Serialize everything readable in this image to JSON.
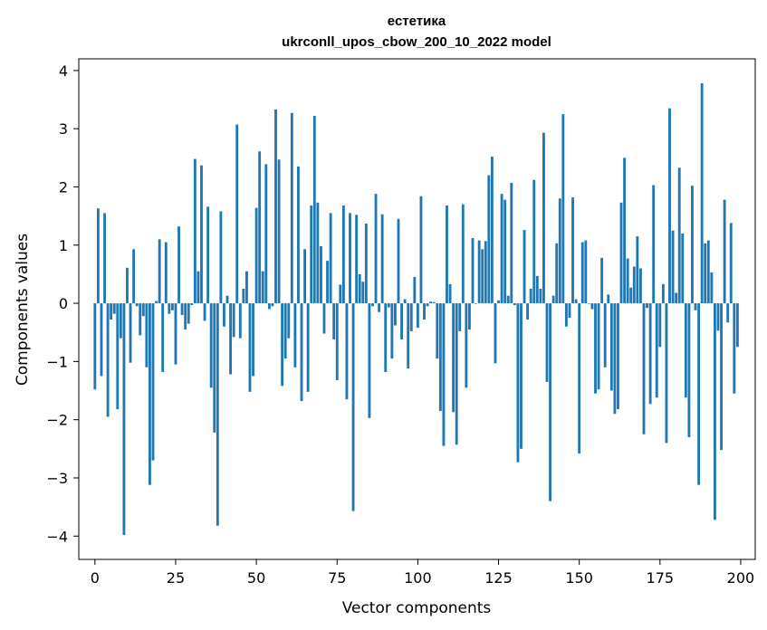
{
  "chart_data": {
    "type": "bar",
    "title_line1": "естетика",
    "title_line2": "ukrconll_upos_cbow_200_10_2022 model",
    "xlabel": "Vector components",
    "ylabel": "Components values",
    "xlim": [
      -5,
      204.5
    ],
    "ylim": [
      -4.4,
      4.2
    ],
    "xticks": [
      0,
      25,
      50,
      75,
      100,
      125,
      150,
      175,
      200
    ],
    "xtick_labels": [
      "0",
      "25",
      "50",
      "75",
      "100",
      "125",
      "150",
      "175",
      "200"
    ],
    "yticks": [
      -4,
      -3,
      -2,
      -1,
      0,
      1,
      2,
      3,
      4
    ],
    "ytick_labels": [
      "−4",
      "−3",
      "−2",
      "−1",
      "0",
      "1",
      "2",
      "3",
      "4"
    ],
    "bar_color": "#1f77b4",
    "values": [
      -1.48,
      1.63,
      -1.25,
      1.55,
      -1.95,
      -0.28,
      -0.18,
      -1.82,
      -0.6,
      -3.98,
      0.61,
      -1.02,
      0.93,
      -0.05,
      -0.55,
      -0.22,
      -1.1,
      -3.12,
      -2.7,
      0.04,
      1.1,
      -1.18,
      1.05,
      -0.18,
      -0.12,
      -1.05,
      1.32,
      -0.2,
      -0.45,
      -0.35,
      -0.03,
      2.48,
      0.55,
      2.37,
      -0.3,
      1.66,
      -1.45,
      -2.22,
      -3.82,
      1.58,
      -0.4,
      0.13,
      -1.22,
      -0.58,
      3.07,
      -0.6,
      0.25,
      0.55,
      -1.52,
      -1.25,
      1.64,
      2.61,
      0.55,
      2.39,
      -0.1,
      -0.05,
      3.33,
      2.47,
      -1.42,
      -0.95,
      -0.6,
      3.27,
      -1.1,
      2.35,
      -1.68,
      0.93,
      -1.52,
      1.68,
      3.22,
      1.73,
      0.98,
      -0.52,
      0.73,
      1.55,
      -0.62,
      -1.32,
      0.32,
      1.68,
      -1.65,
      1.55,
      -3.57,
      1.52,
      0.5,
      0.37,
      1.37,
      -1.97,
      -0.05,
      1.88,
      -0.15,
      1.53,
      -1.18,
      -0.07,
      -0.95,
      -0.38,
      1.45,
      -0.62,
      0.07,
      -1.12,
      -0.48,
      0.45,
      -0.42,
      1.84,
      -0.28,
      -0.05,
      0.03,
      0.02,
      -0.95,
      -1.85,
      -2.45,
      1.68,
      0.33,
      -1.87,
      -2.43,
      -0.48,
      1.7,
      -1.45,
      -0.45,
      1.12,
      0.0,
      1.08,
      0.93,
      1.07,
      2.2,
      2.52,
      -1.03,
      0.05,
      1.88,
      1.78,
      0.13,
      2.07,
      -0.03,
      -2.73,
      -2.5,
      1.26,
      -0.28,
      0.25,
      2.12,
      0.47,
      0.25,
      2.93,
      -1.35,
      -3.4,
      0.13,
      1.03,
      1.8,
      3.25,
      -0.4,
      -0.25,
      1.82,
      0.07,
      -2.58,
      1.05,
      1.08,
      0.0,
      -0.1,
      -1.55,
      -1.48,
      0.78,
      -1.1,
      0.15,
      -1.5,
      -1.9,
      -1.82,
      1.73,
      2.5,
      0.77,
      0.27,
      0.63,
      1.15,
      0.6,
      -2.25,
      -0.08,
      -1.73,
      2.03,
      -1.62,
      -0.75,
      0.33,
      -2.4,
      3.35,
      1.25,
      0.18,
      2.33,
      1.2,
      -1.62,
      -2.3,
      2.02,
      -0.12,
      -3.12,
      3.78,
      1.03,
      1.08,
      0.53,
      -3.72,
      -0.47,
      -2.52,
      1.78,
      -0.33,
      1.38,
      -1.55,
      -0.75
    ]
  }
}
